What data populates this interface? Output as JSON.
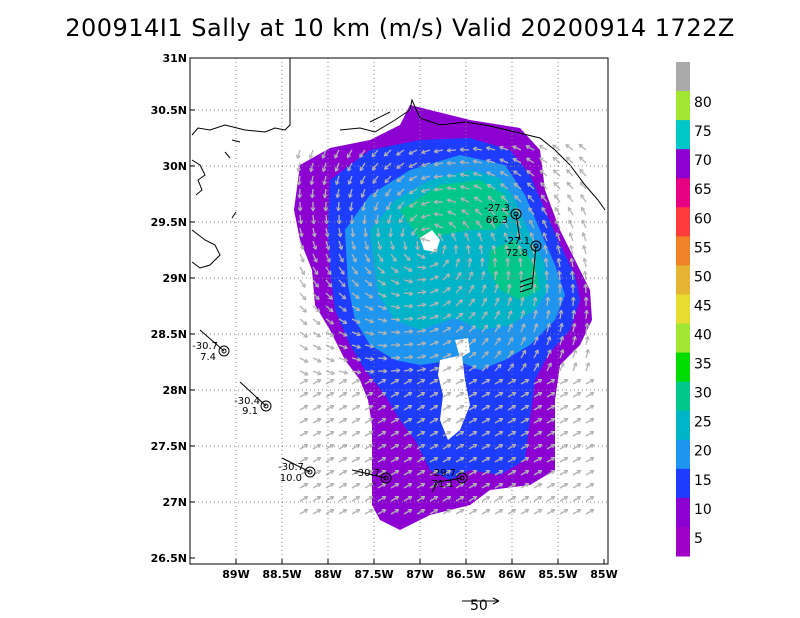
{
  "title": "200914I1 Sally at 10 km (m/s) Valid 20200914 1722Z",
  "lat_ticks": [
    "31N",
    "30.5N",
    "30N",
    "29.5N",
    "29N",
    "28.5N",
    "28N",
    "27.5N",
    "27N",
    "26.5N"
  ],
  "lon_ticks": [
    "89W",
    "88.5W",
    "88W",
    "87.5W",
    "87W",
    "86.5W",
    "86W",
    "85.5W",
    "85W"
  ],
  "colorbar": {
    "labels": [
      "80",
      "75",
      "70",
      "65",
      "60",
      "55",
      "50",
      "45",
      "40",
      "35",
      "30",
      "25",
      "20",
      "15",
      "10",
      "5"
    ],
    "colors": [
      "#aaaaaa",
      "#a0e632",
      "#00c8c8",
      "#8c00d2",
      "#e60082",
      "#ff3c3c",
      "#f08228",
      "#e6b432",
      "#e6dc32",
      "#a0e632",
      "#00dc00",
      "#00c88c",
      "#00b4c8",
      "#1e96f0",
      "#1e3cff",
      "#8c00d2",
      "#a000c8"
    ]
  },
  "observations": [
    {
      "top": "-27.3",
      "bottom": "66.3"
    },
    {
      "top": "-27.1",
      "bottom": "72.8"
    },
    {
      "top": "-30.7",
      "bottom": "7.4"
    },
    {
      "top": "-30.4",
      "bottom": "9.1"
    },
    {
      "top": "-30.7",
      "bottom": "10.0"
    },
    {
      "top": "-30.7",
      "bottom": "-"
    },
    {
      "top": "-29.7",
      "bottom": "71.1"
    }
  ],
  "scale_vector_label": "50",
  "colors": {
    "land_line": "#000000",
    "arrow": "#b4b4b4",
    "grid": "#888888"
  }
}
